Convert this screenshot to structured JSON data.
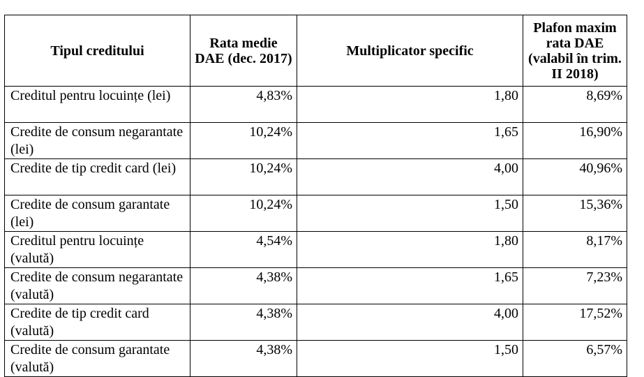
{
  "table": {
    "headers": {
      "type": "Tipul creditului",
      "rate": "Rata medie DAE (dec. 2017)",
      "multiplier": "Multiplicator specific",
      "cap": "Plafon maxim rata DAE (valabil în trim. II 2018)"
    },
    "rows": [
      {
        "type": "Creditul pentru locuințe (lei)",
        "rate": "4,83%",
        "multiplier": "1,80",
        "cap": "8,69%"
      },
      {
        "type": "Credite de consum negarantate (lei)",
        "rate": "10,24%",
        "multiplier": "1,65",
        "cap": "16,90%"
      },
      {
        "type": "Credite de tip credit card (lei)",
        "rate": "10,24%",
        "multiplier": "4,00",
        "cap": "40,96%"
      },
      {
        "type": "Credite de consum garantate (lei)",
        "rate": "10,24%",
        "multiplier": "1,50",
        "cap": "15,36%"
      },
      {
        "type": "Creditul pentru locuințe (valută)",
        "rate": "4,54%",
        "multiplier": "1,80",
        "cap": "8,17%"
      },
      {
        "type": "Credite de consum negarantate (valută)",
        "rate": "4,38%",
        "multiplier": "1,65",
        "cap": "7,23%"
      },
      {
        "type": "Credite de tip credit card (valută)",
        "rate": "4,38%",
        "multiplier": "4,00",
        "cap": "17,52%"
      },
      {
        "type": "Credite de consum garantate (valută)",
        "rate": "4,38%",
        "multiplier": "1,50",
        "cap": "6,57%"
      }
    ]
  }
}
